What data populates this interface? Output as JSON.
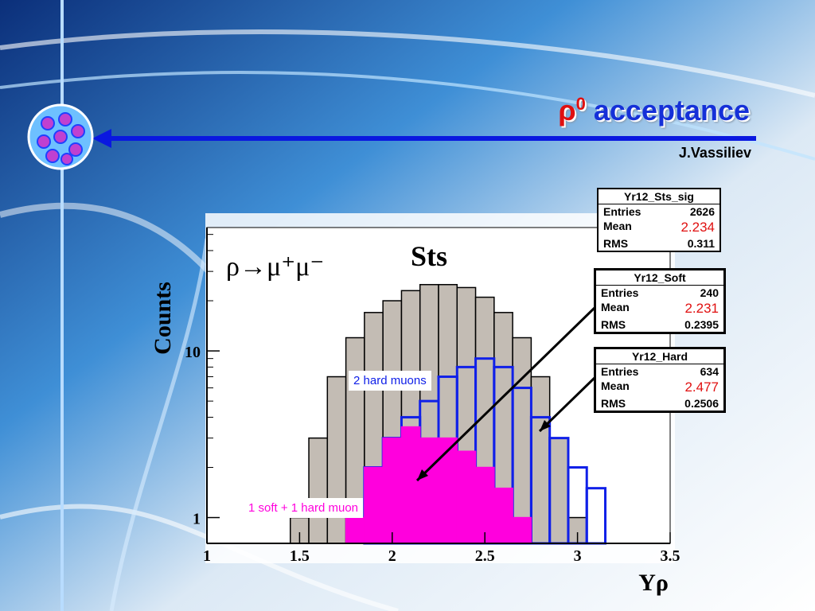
{
  "title": {
    "symbol": "ρ",
    "superscript": "0",
    "text": "acceptance"
  },
  "author": "J.Vassiliev",
  "colors": {
    "title_blue": "#1530d8",
    "title_red": "#e01010",
    "sts_fill": "#c0b8b0",
    "soft_blue": "#1020e8",
    "hard_magenta": "#ff00dd"
  },
  "annotations": {
    "reaction": "ρ→μ⁺μ⁻",
    "detector": "Sts",
    "hard_label": "2 hard muons",
    "soft_label": "1 soft + 1 hard muon"
  },
  "stat_boxes": [
    {
      "name": "Yr12_Sts_sig",
      "entries": "2626",
      "mean": "2.234",
      "rms": "0.311"
    },
    {
      "name": "Yr12_Soft",
      "entries": "240",
      "mean": "2.231",
      "rms": "0.2395"
    },
    {
      "name": "Yr12_Hard",
      "entries": "634",
      "mean": "2.477",
      "rms": "0.2506"
    }
  ],
  "stat_labels": {
    "entries": "Entries",
    "mean": "Mean",
    "rms": "RMS"
  },
  "chart_data": {
    "type": "bar",
    "xlabel": "Yρ",
    "ylabel": "Counts",
    "xlim": [
      1,
      3.5
    ],
    "ylim": [
      0.7,
      55
    ],
    "yscale": "log",
    "xticks": [
      "1",
      "1.5",
      "2",
      "2.5",
      "3",
      "3.5"
    ],
    "yticks": [
      "1",
      "10"
    ],
    "series": [
      {
        "name": "Yr12_Sts_sig",
        "type": "histogram",
        "x": [
          1.5,
          1.6,
          1.7,
          1.8,
          1.9,
          2.0,
          2.1,
          2.2,
          2.3,
          2.4,
          2.5,
          2.6,
          2.7,
          2.8,
          2.9,
          3.0
        ],
        "values": [
          1,
          3,
          7,
          12,
          17,
          20,
          23,
          25,
          25,
          24,
          21,
          17,
          12,
          7,
          3,
          1
        ]
      },
      {
        "name": "Yr12_Hard",
        "type": "histogram",
        "x": [
          1.9,
          2.0,
          2.1,
          2.2,
          2.3,
          2.4,
          2.5,
          2.6,
          2.7,
          2.8,
          2.9,
          3.0,
          3.1
        ],
        "values": [
          2,
          3,
          4,
          5,
          7,
          8,
          9,
          8,
          6,
          4,
          3,
          2,
          1.5
        ]
      },
      {
        "name": "Yr12_Soft",
        "type": "histogram",
        "x": [
          1.8,
          1.9,
          2.0,
          2.1,
          2.2,
          2.3,
          2.4,
          2.5,
          2.6,
          2.7
        ],
        "values": [
          1,
          2,
          3,
          3.5,
          3,
          3,
          2.5,
          2,
          1.5,
          1
        ]
      }
    ]
  }
}
